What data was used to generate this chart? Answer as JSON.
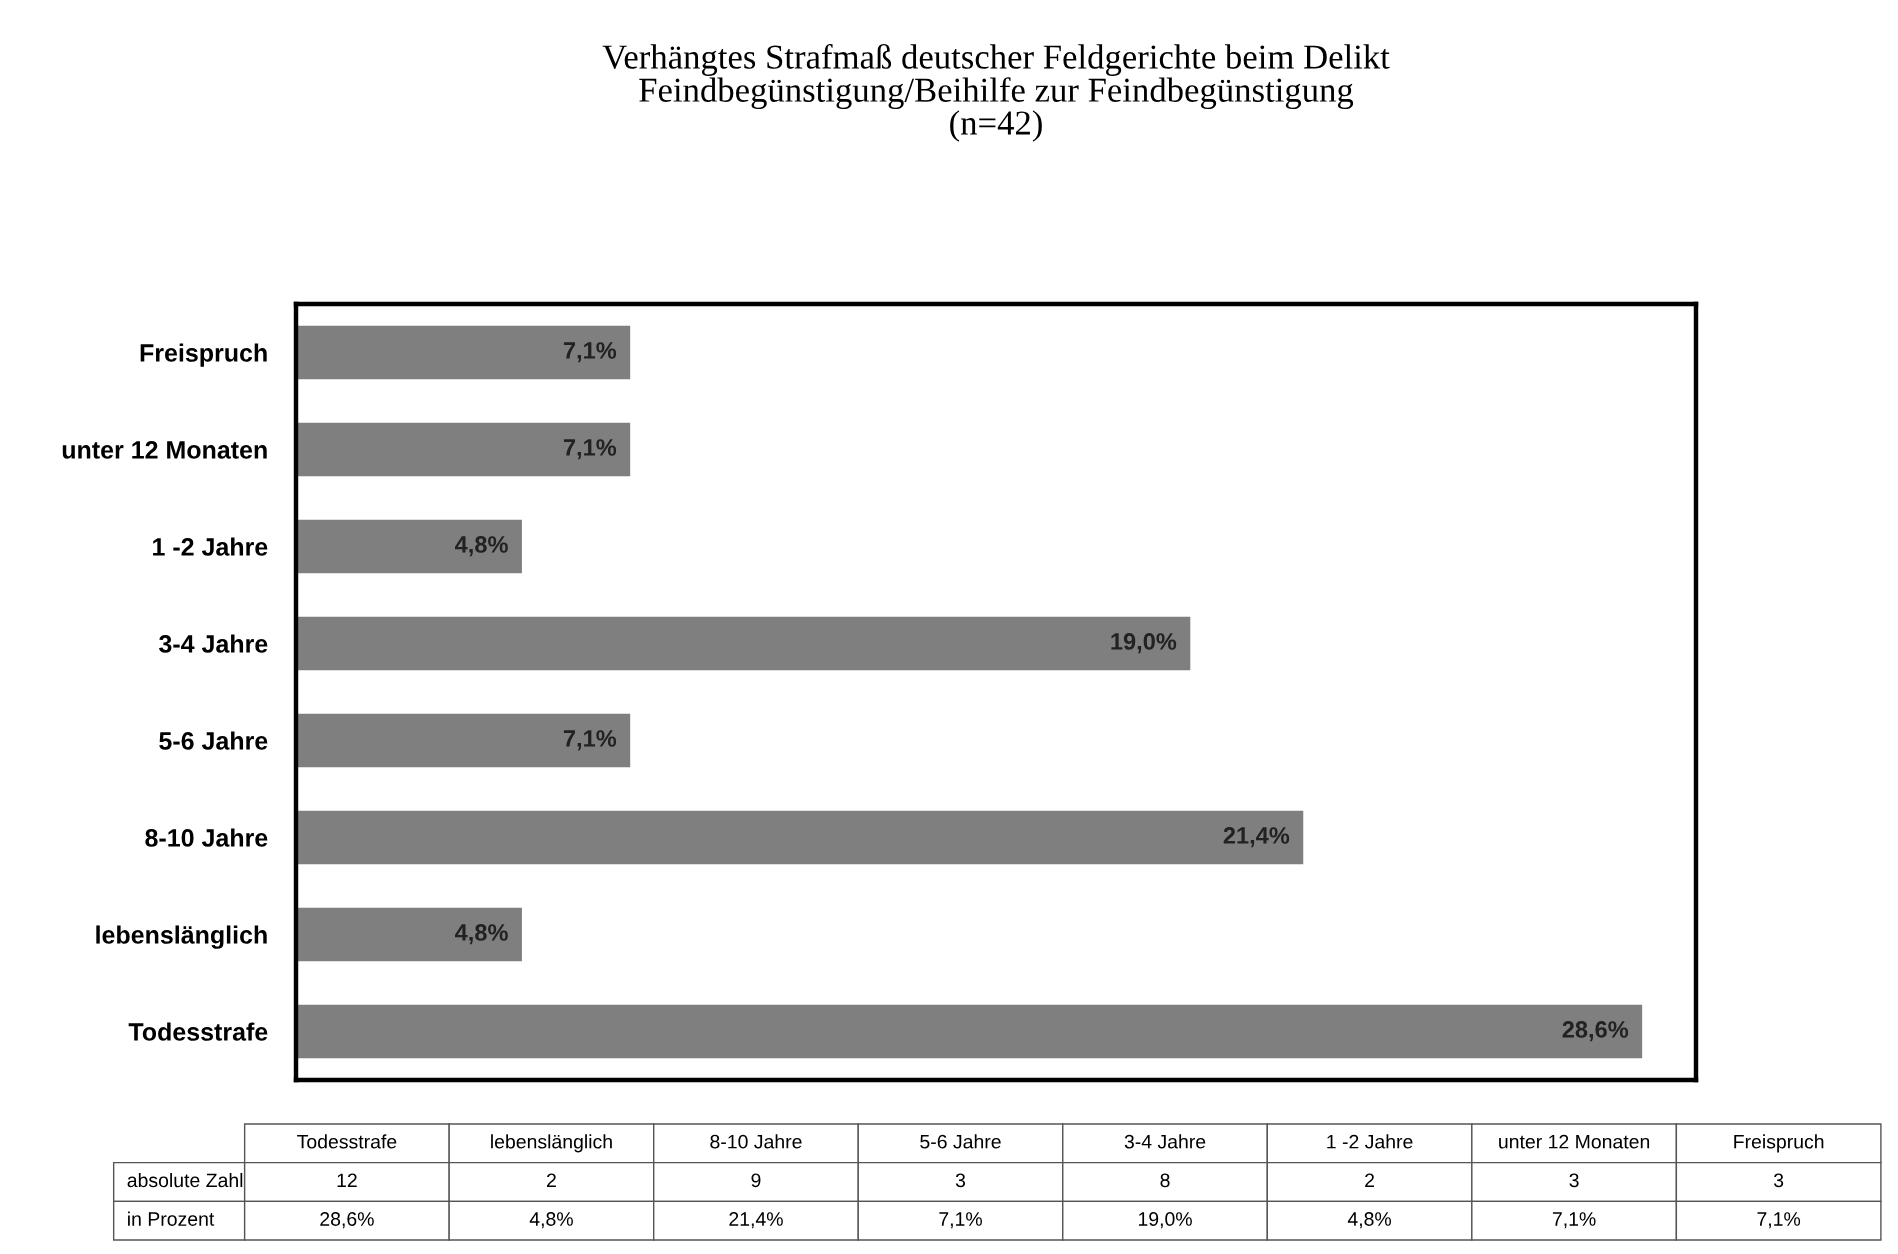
{
  "chart_data": {
    "type": "bar",
    "orientation": "horizontal",
    "title": "Verhängtes Strafmaß deutscher Feldgerichte beim Delikt\nFeindbegünstigung/Beihilfe zur Feindbegünstigung\n(n=42)",
    "categories": [
      "Freispruch",
      "unter 12 Monaten",
      "1 -2 Jahre",
      "3-4 Jahre",
      "5-6 Jahre",
      "8-10 Jahre",
      "lebenslänglich",
      "Todesstrafe"
    ],
    "series": [
      {
        "color": "#7f7f7f",
        "values": [
          7.1,
          7.1,
          4.8,
          19.0,
          7.1,
          21.4,
          4.8,
          28.6
        ],
        "value_labels": [
          "7,1%",
          "7,1%",
          "4,8%",
          "19,0%",
          "7,1%",
          "21,4%",
          "4,8%",
          "28,6%"
        ]
      }
    ],
    "annotations": [
      "absolute Zahl",
      "3",
      "3",
      "2",
      "8",
      "3",
      "9",
      "2",
      "12",
      "in Prozent"
    ],
    "grid": false
  }
}
